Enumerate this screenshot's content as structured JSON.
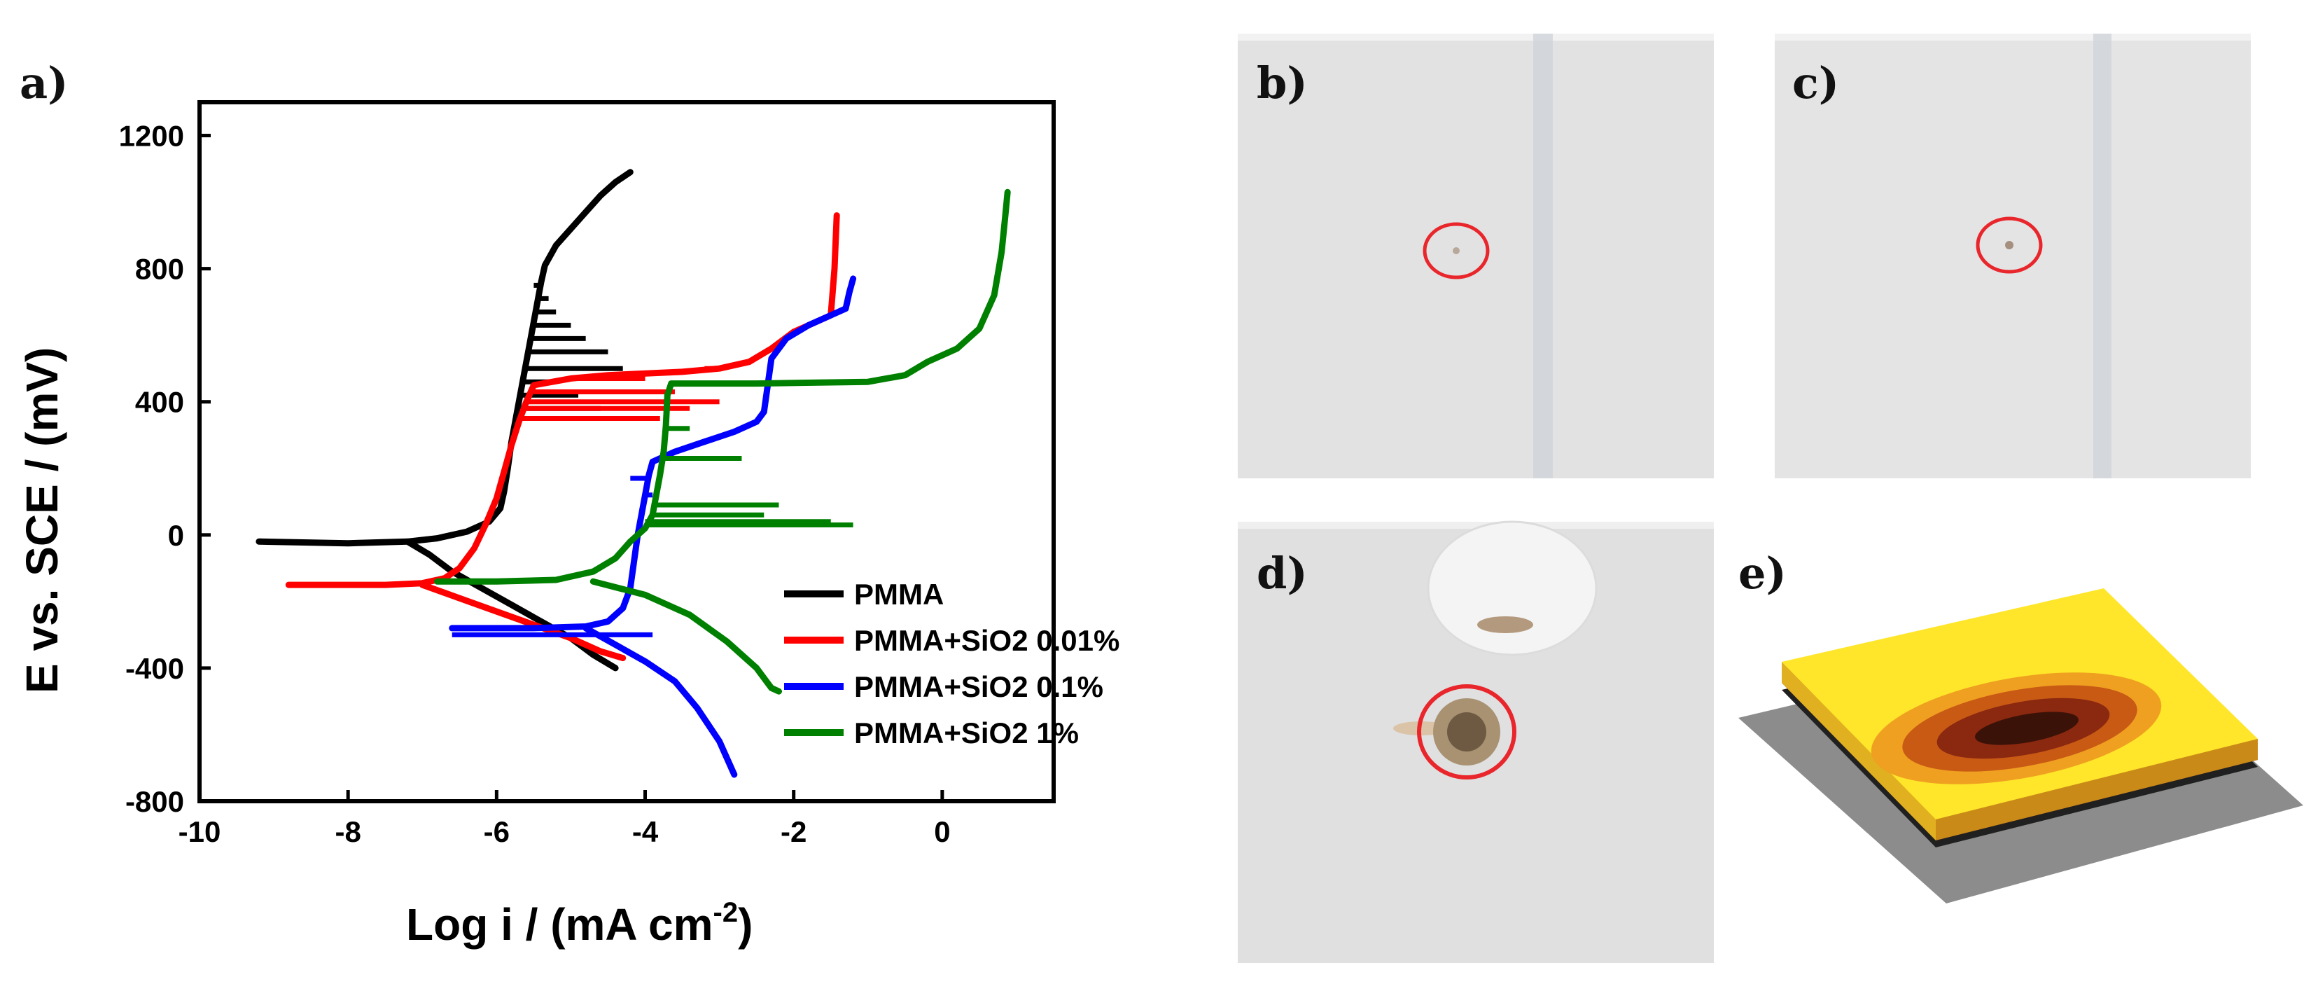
{
  "panels": {
    "a": "a)",
    "b": "b)",
    "c": "c)",
    "d": "d)",
    "e": "e)"
  },
  "photos": {
    "background_color": "#e3e3e3",
    "marker_color": "#e8262b"
  },
  "surface_map": {
    "colors": [
      "#ffe62a",
      "#f5b21e",
      "#d2681a",
      "#8a2810",
      "#202020",
      "#8c8c8c"
    ]
  },
  "chart_data": {
    "type": "line",
    "title": "",
    "xlabel": "Log i / (mA cm",
    "xlabel_sup": "-2",
    "xlabel_end": ")",
    "ylabel": "E vs. SCE / (mV)",
    "xlim": [
      -10,
      1.5
    ],
    "ylim": [
      -800,
      1300
    ],
    "xticks": [
      -10,
      -8,
      -6,
      -4,
      -2,
      0
    ],
    "yticks": [
      -800,
      -400,
      0,
      400,
      800,
      1200
    ],
    "legend_position": "lower-right",
    "grid": false,
    "series": [
      {
        "name": "PMMA",
        "color": "#000000",
        "points": [
          [
            -9.2,
            -20
          ],
          [
            -8.0,
            -25
          ],
          [
            -7.2,
            -20
          ],
          [
            -6.8,
            -10
          ],
          [
            -6.4,
            10
          ],
          [
            -6.1,
            40
          ],
          [
            -5.95,
            80
          ],
          [
            -5.9,
            130
          ],
          [
            -5.85,
            200
          ],
          [
            -5.8,
            280
          ],
          [
            -5.75,
            340
          ],
          [
            -5.7,
            400
          ],
          [
            -5.65,
            460
          ],
          [
            -5.6,
            520
          ],
          [
            -5.55,
            580
          ],
          [
            -5.5,
            640
          ],
          [
            -5.45,
            700
          ],
          [
            -5.4,
            760
          ],
          [
            -5.35,
            810
          ],
          [
            -5.2,
            870
          ],
          [
            -5.0,
            920
          ],
          [
            -4.8,
            970
          ],
          [
            -4.6,
            1020
          ],
          [
            -4.4,
            1060
          ],
          [
            -4.2,
            1090
          ]
        ],
        "cathodic": [
          [
            -7.2,
            -20
          ],
          [
            -6.9,
            -60
          ],
          [
            -6.6,
            -110
          ],
          [
            -6.2,
            -160
          ],
          [
            -5.8,
            -210
          ],
          [
            -5.4,
            -260
          ],
          [
            -5.0,
            -310
          ],
          [
            -4.7,
            -360
          ],
          [
            -4.4,
            -400
          ]
        ],
        "spikes": [
          [
            350,
            -4.5
          ],
          [
            380,
            -4.6
          ],
          [
            420,
            -4.9
          ],
          [
            460,
            -5.2
          ],
          [
            500,
            -4.3
          ],
          [
            550,
            -4.5
          ],
          [
            590,
            -4.8
          ],
          [
            630,
            -5.0
          ],
          [
            670,
            -5.2
          ],
          [
            710,
            -5.3
          ],
          [
            750,
            -5.5
          ]
        ]
      },
      {
        "name": "PMMA+SiO2 0.01%",
        "color": "#ff0000",
        "points": [
          [
            -8.8,
            -150
          ],
          [
            -7.5,
            -150
          ],
          [
            -7.0,
            -145
          ],
          [
            -6.7,
            -130
          ],
          [
            -6.5,
            -100
          ],
          [
            -6.3,
            -40
          ],
          [
            -6.15,
            30
          ],
          [
            -6.0,
            110
          ],
          [
            -5.9,
            190
          ],
          [
            -5.8,
            270
          ],
          [
            -5.7,
            340
          ],
          [
            -5.6,
            400
          ],
          [
            -5.5,
            450
          ],
          [
            -5.0,
            470
          ],
          [
            -4.5,
            480
          ],
          [
            -3.5,
            490
          ],
          [
            -3.0,
            500
          ],
          [
            -2.6,
            520
          ],
          [
            -2.3,
            560
          ],
          [
            -2.0,
            610
          ],
          [
            -1.7,
            640
          ],
          [
            -1.5,
            660
          ],
          [
            -1.45,
            800
          ],
          [
            -1.42,
            960
          ]
        ],
        "cathodic": [
          [
            -7.0,
            -150
          ],
          [
            -6.5,
            -190
          ],
          [
            -6.0,
            -230
          ],
          [
            -5.5,
            -270
          ],
          [
            -5.0,
            -310
          ],
          [
            -4.6,
            -350
          ],
          [
            -4.3,
            -370
          ]
        ],
        "spikes": [
          [
            350,
            -3.8
          ],
          [
            380,
            -3.4
          ],
          [
            400,
            -3.0
          ],
          [
            430,
            -3.6
          ],
          [
            470,
            -4.0
          ],
          [
            500,
            -3.2
          ]
        ]
      },
      {
        "name": "PMMA+SiO2 0.1%",
        "color": "#0000ff",
        "points": [
          [
            -6.6,
            -280
          ],
          [
            -5.5,
            -280
          ],
          [
            -4.8,
            -275
          ],
          [
            -4.5,
            -260
          ],
          [
            -4.3,
            -220
          ],
          [
            -4.2,
            -160
          ],
          [
            -4.15,
            -80
          ],
          [
            -4.1,
            0
          ],
          [
            -4.05,
            60
          ],
          [
            -4.0,
            120
          ],
          [
            -3.95,
            180
          ],
          [
            -3.9,
            220
          ],
          [
            -3.6,
            250
          ],
          [
            -3.2,
            280
          ],
          [
            -2.8,
            310
          ],
          [
            -2.5,
            340
          ],
          [
            -2.4,
            370
          ],
          [
            -2.35,
            450
          ],
          [
            -2.3,
            530
          ],
          [
            -2.1,
            590
          ],
          [
            -1.8,
            630
          ],
          [
            -1.5,
            660
          ],
          [
            -1.3,
            680
          ],
          [
            -1.25,
            730
          ],
          [
            -1.2,
            770
          ]
        ],
        "cathodic": [
          [
            -4.8,
            -280
          ],
          [
            -4.4,
            -330
          ],
          [
            -4.0,
            -380
          ],
          [
            -3.6,
            -440
          ],
          [
            -3.3,
            -520
          ],
          [
            -3.0,
            -620
          ],
          [
            -2.8,
            -720
          ]
        ],
        "spikes": [
          [
            -300,
            -3.9
          ],
          [
            170,
            -4.2
          ],
          [
            120,
            -3.9
          ]
        ]
      },
      {
        "name": "PMMA+SiO2 1%",
        "color": "#008000",
        "points": [
          [
            -6.8,
            -140
          ],
          [
            -6.0,
            -140
          ],
          [
            -5.2,
            -135
          ],
          [
            -4.7,
            -110
          ],
          [
            -4.4,
            -70
          ],
          [
            -4.2,
            -20
          ],
          [
            -4.0,
            20
          ],
          [
            -3.9,
            60
          ],
          [
            -3.85,
            120
          ],
          [
            -3.8,
            180
          ],
          [
            -3.75,
            250
          ],
          [
            -3.72,
            330
          ],
          [
            -3.7,
            420
          ],
          [
            -3.65,
            455
          ],
          [
            -2.5,
            455
          ],
          [
            -1.0,
            460
          ],
          [
            -0.5,
            480
          ],
          [
            -0.2,
            520
          ],
          [
            0.2,
            560
          ],
          [
            0.5,
            620
          ],
          [
            0.7,
            720
          ],
          [
            0.8,
            850
          ],
          [
            0.85,
            960
          ],
          [
            0.88,
            1030
          ]
        ],
        "cathodic": [
          [
            -4.7,
            -140
          ],
          [
            -4.0,
            -180
          ],
          [
            -3.4,
            -240
          ],
          [
            -2.9,
            -320
          ],
          [
            -2.5,
            -400
          ],
          [
            -2.3,
            -460
          ],
          [
            -2.2,
            -470
          ]
        ],
        "spikes": [
          [
            30,
            -1.2
          ],
          [
            40,
            -1.5
          ],
          [
            60,
            -2.4
          ],
          [
            90,
            -2.2
          ],
          [
            230,
            -2.7
          ],
          [
            320,
            -3.4
          ]
        ]
      }
    ]
  }
}
